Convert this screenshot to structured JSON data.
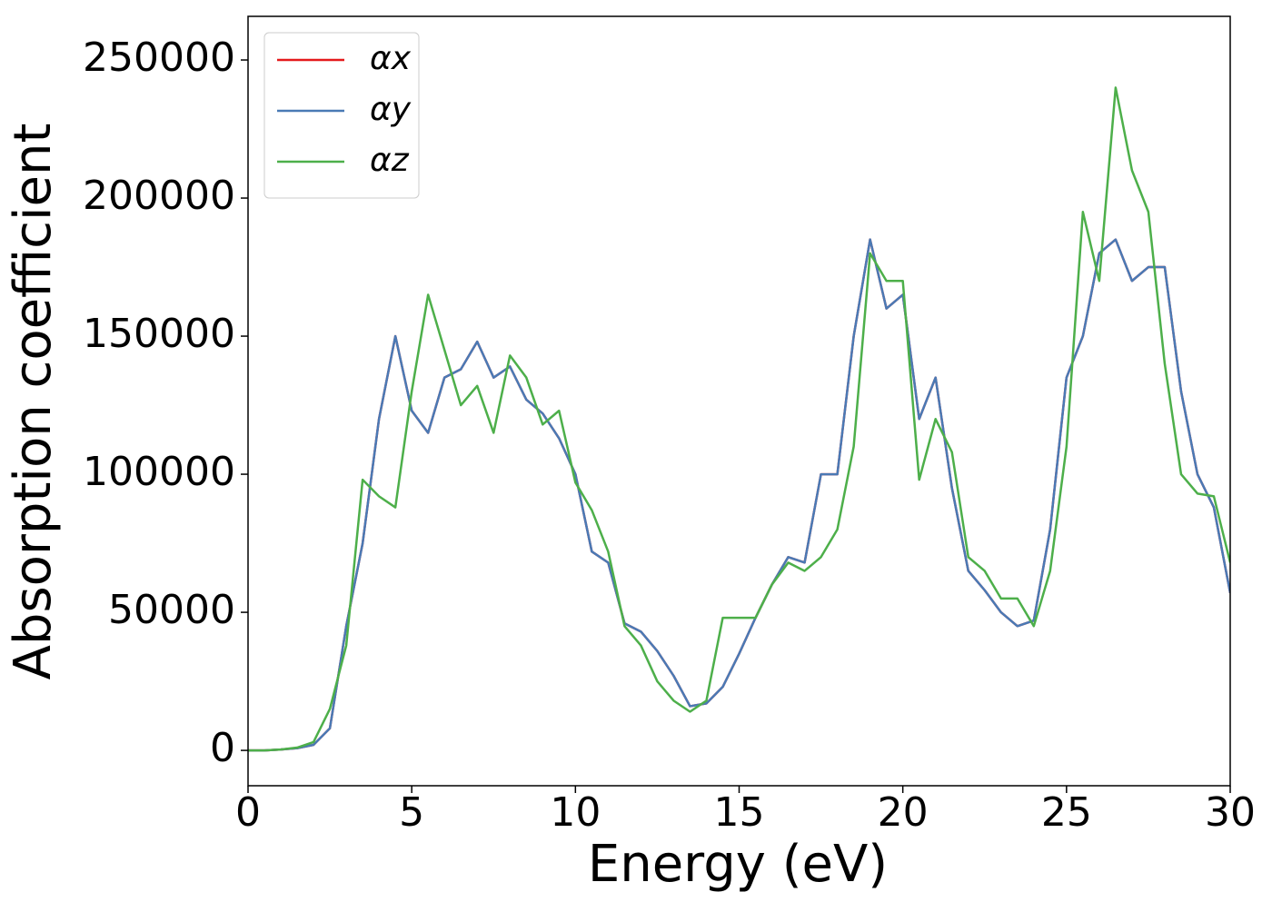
{
  "chart_data": {
    "type": "line",
    "xlabel": "Energy (eV)",
    "ylabel": "Absorption coefficient",
    "x": [
      0,
      0.5,
      1,
      1.5,
      2,
      2.5,
      3,
      3.5,
      4,
      4.5,
      5,
      5.5,
      6,
      6.5,
      7,
      7.5,
      8,
      8.5,
      9,
      9.5,
      10,
      10.5,
      11,
      11.5,
      12,
      12.5,
      13,
      13.5,
      14,
      14.5,
      15,
      15.5,
      16,
      16.5,
      17,
      17.5,
      18,
      18.5,
      19,
      19.5,
      20,
      20.5,
      21,
      21.5,
      22,
      22.5,
      23,
      23.5,
      24,
      24.5,
      25,
      25.5,
      26,
      26.5,
      27,
      27.5,
      28,
      28.5,
      29,
      29.5,
      30
    ],
    "series": [
      {
        "name": "αx",
        "color": "#e41a1c",
        "values": [
          0,
          0,
          300,
          800,
          2000,
          8000,
          45000,
          75000,
          120000,
          150000,
          123000,
          115000,
          135000,
          138000,
          148000,
          135000,
          139000,
          127000,
          122000,
          113000,
          100000,
          72000,
          68000,
          46000,
          43000,
          36000,
          27000,
          16000,
          17000,
          23000,
          35000,
          48000,
          60000,
          70000,
          68000,
          100000,
          100000,
          150000,
          185000,
          160000,
          165000,
          120000,
          135000,
          95000,
          65000,
          58000,
          50000,
          45000,
          47000,
          80000,
          135000,
          150000,
          180000,
          185000,
          170000,
          175000,
          175000,
          130000,
          100000,
          88000,
          57000
        ]
      },
      {
        "name": "αy",
        "color": "#4a7ab5",
        "values": [
          0,
          0,
          300,
          800,
          2000,
          8000,
          45000,
          75000,
          120000,
          150000,
          123000,
          115000,
          135000,
          138000,
          148000,
          135000,
          139000,
          127000,
          122000,
          113000,
          100000,
          72000,
          68000,
          46000,
          43000,
          36000,
          27000,
          16000,
          17000,
          23000,
          35000,
          48000,
          60000,
          70000,
          68000,
          100000,
          100000,
          150000,
          185000,
          160000,
          165000,
          120000,
          135000,
          95000,
          65000,
          58000,
          50000,
          45000,
          47000,
          80000,
          135000,
          150000,
          180000,
          185000,
          170000,
          175000,
          175000,
          130000,
          100000,
          88000,
          57000
        ]
      },
      {
        "name": "αz",
        "color": "#4daf4a",
        "values": [
          0,
          0,
          300,
          1000,
          3000,
          15000,
          38000,
          98000,
          92000,
          88000,
          130000,
          165000,
          145000,
          125000,
          132000,
          115000,
          143000,
          135000,
          118000,
          123000,
          97000,
          87000,
          72000,
          45000,
          38000,
          25000,
          18000,
          14000,
          18000,
          48000,
          48000,
          48000,
          60000,
          68000,
          65000,
          70000,
          80000,
          110000,
          180000,
          170000,
          170000,
          98000,
          120000,
          108000,
          70000,
          65000,
          55000,
          55000,
          45000,
          65000,
          110000,
          195000,
          170000,
          240000,
          210000,
          195000,
          140000,
          100000,
          93000,
          92000,
          68000
        ]
      }
    ],
    "xlim": [
      0,
      30
    ],
    "xticks": [
      0,
      5,
      10,
      15,
      20,
      25,
      30
    ],
    "ylim": [
      -12800,
      265800
    ],
    "yticks": [
      0,
      50000,
      100000,
      150000,
      200000,
      250000
    ],
    "legend": "upper left",
    "grid": false
  }
}
